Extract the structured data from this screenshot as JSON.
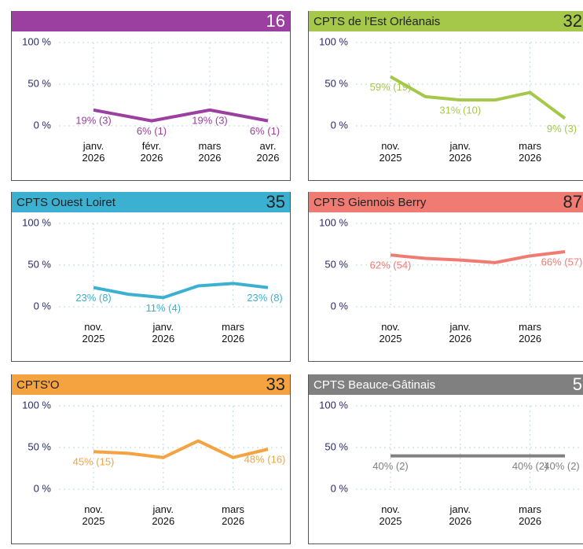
{
  "chart_data": [
    {
      "type": "line",
      "count": "16",
      "color": "#9b3fa0",
      "title_color": "#ffffff",
      "categories": [
        "janv. 2026",
        "févr. 2026",
        "mars 2026",
        "avr. 2026"
      ],
      "values": [
        19,
        6,
        19,
        6
      ],
      "value_labels": [
        "19% (3)",
        "6% (1)",
        "19% (3)",
        "6% (1)"
      ],
      "ylim": [
        0,
        100
      ],
      "yticks": [
        {
          "value": 0,
          "label": "0 %"
        },
        {
          "value": 50,
          "label": "50 %"
        },
        {
          "value": 100,
          "label": "100 %"
        }
      ]
    },
    {
      "type": "line",
      "title": "CPTS de l'Est Orléanais",
      "count": "32",
      "color": "#a5c84a",
      "title_color": "#222222",
      "categories": [
        "nov. 2025",
        null,
        "janv. 2026",
        null,
        "mars 2026",
        null
      ],
      "values": [
        59,
        35,
        31,
        31,
        40,
        9
      ],
      "value_labels": [
        "59% (19)",
        null,
        "31% (10)",
        null,
        null,
        "9% (3)"
      ],
      "ylim": [
        0,
        100
      ],
      "yticks": [
        {
          "value": 0,
          "label": "0 %"
        },
        {
          "value": 50,
          "label": "50 %"
        },
        {
          "value": 100,
          "label": "100 %"
        }
      ]
    },
    {
      "type": "line",
      "title": "CPTS Ouest Loiret",
      "count": "35",
      "color": "#3bb0d0",
      "title_color": "#222222",
      "categories": [
        "nov. 2025",
        null,
        "janv. 2026",
        null,
        "mars 2026",
        null
      ],
      "values": [
        23,
        15,
        11,
        25,
        28,
        23
      ],
      "value_labels": [
        "23% (8)",
        null,
        "11% (4)",
        null,
        null,
        "23% (8)"
      ],
      "ylim": [
        0,
        100
      ],
      "yticks": [
        {
          "value": 0,
          "label": "0 %"
        },
        {
          "value": 50,
          "label": "50 %"
        },
        {
          "value": 100,
          "label": "100 %"
        }
      ]
    },
    {
      "type": "line",
      "title": "CPTS Giennois Berry",
      "count": "87",
      "color": "#f07b72",
      "title_color": "#222222",
      "categories": [
        "nov. 2025",
        null,
        "janv. 2026",
        null,
        "mars 2026",
        null
      ],
      "values": [
        62,
        58,
        56,
        53,
        61,
        66
      ],
      "value_labels": [
        "62% (54)",
        null,
        null,
        null,
        null,
        "66% (57)"
      ],
      "ylim": [
        0,
        100
      ],
      "yticks": [
        {
          "value": 0,
          "label": "0 %"
        },
        {
          "value": 50,
          "label": "50 %"
        },
        {
          "value": 100,
          "label": "100 %"
        }
      ]
    },
    {
      "type": "line",
      "title": "CPTS'O",
      "count": "33",
      "color": "#f5a340",
      "title_color": "#222222",
      "categories": [
        "nov. 2025",
        null,
        "janv. 2026",
        null,
        "mars 2026",
        null
      ],
      "values": [
        45,
        43,
        38,
        58,
        38,
        48
      ],
      "value_labels": [
        "45% (15)",
        null,
        null,
        null,
        null,
        "48% (16)"
      ],
      "ylim": [
        0,
        100
      ],
      "yticks": [
        {
          "value": 0,
          "label": "0 %"
        },
        {
          "value": 50,
          "label": "50 %"
        },
        {
          "value": 100,
          "label": "100 %"
        }
      ]
    },
    {
      "type": "line",
      "title": "CPTS Beauce-Gâtinais",
      "count": "5",
      "color": "#808080",
      "title_color": "#ffffff",
      "categories": [
        "nov. 2025",
        null,
        "janv. 2026",
        null,
        "mars 2026",
        null
      ],
      "values": [
        40,
        40,
        40,
        40,
        40,
        40
      ],
      "value_labels": [
        "40% (2)",
        null,
        null,
        null,
        "40% (2)",
        "40% (2)"
      ],
      "ylim": [
        0,
        100
      ],
      "yticks": [
        {
          "value": 0,
          "label": "0 %"
        },
        {
          "value": 50,
          "label": "50 %"
        },
        {
          "value": 100,
          "label": "100 %"
        }
      ]
    }
  ]
}
